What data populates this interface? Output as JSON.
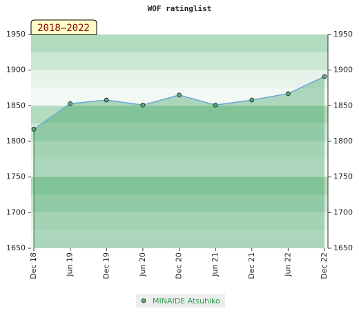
{
  "chart_data": {
    "type": "line",
    "title": "WOF ratinglist",
    "period": "2018–2022",
    "categories": [
      "Dec 18",
      "Jun 19",
      "Dec 19",
      "Jun 20",
      "Dec 20",
      "Jun 21",
      "Dec 21",
      "Jun 22",
      "Dec 22"
    ],
    "series": [
      {
        "name": "MINAIDE Atsuhiko",
        "color": "#6aa8d8",
        "values": [
          1817,
          1853,
          1858,
          1851,
          1865,
          1851,
          1858,
          1867,
          1891
        ]
      }
    ],
    "ylim": [
      1650,
      1950
    ],
    "yticks": [
      1650,
      1700,
      1750,
      1800,
      1850,
      1900,
      1950
    ],
    "y2lim": [
      1650,
      1950
    ],
    "y2ticks": [
      1650,
      1700,
      1750,
      1800,
      1850,
      1900,
      1950
    ]
  }
}
